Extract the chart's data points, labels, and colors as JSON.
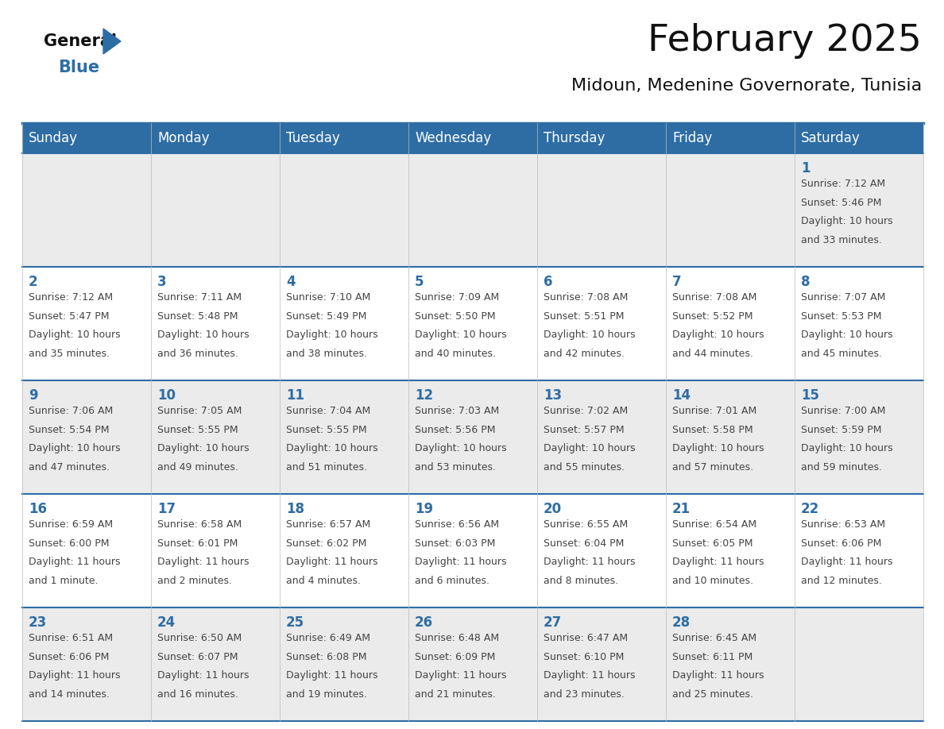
{
  "title": "February 2025",
  "subtitle": "Midoun, Medenine Governorate, Tunisia",
  "header_bg": "#2E6DA4",
  "header_text_color": "#FFFFFF",
  "day_names": [
    "Sunday",
    "Monday",
    "Tuesday",
    "Wednesday",
    "Thursday",
    "Friday",
    "Saturday"
  ],
  "row_bg_odd": "#EBEBEB",
  "row_bg_even": "#FFFFFF",
  "grid_line_color": "#2E6DA4",
  "day_number_color": "#2E6DA4",
  "info_text_color": "#444444",
  "logo_general_color": "#111111",
  "logo_blue_color": "#2E6DA4",
  "title_fontsize": 34,
  "subtitle_fontsize": 16,
  "header_fontsize": 12,
  "day_num_fontsize": 12,
  "info_fontsize": 9,
  "calendar": [
    [
      null,
      null,
      null,
      null,
      null,
      null,
      {
        "day": 1,
        "sunrise": "7:12 AM",
        "sunset": "5:46 PM",
        "daylight": "10 hours and 33 minutes."
      }
    ],
    [
      {
        "day": 2,
        "sunrise": "7:12 AM",
        "sunset": "5:47 PM",
        "daylight": "10 hours and 35 minutes."
      },
      {
        "day": 3,
        "sunrise": "7:11 AM",
        "sunset": "5:48 PM",
        "daylight": "10 hours and 36 minutes."
      },
      {
        "day": 4,
        "sunrise": "7:10 AM",
        "sunset": "5:49 PM",
        "daylight": "10 hours and 38 minutes."
      },
      {
        "day": 5,
        "sunrise": "7:09 AM",
        "sunset": "5:50 PM",
        "daylight": "10 hours and 40 minutes."
      },
      {
        "day": 6,
        "sunrise": "7:08 AM",
        "sunset": "5:51 PM",
        "daylight": "10 hours and 42 minutes."
      },
      {
        "day": 7,
        "sunrise": "7:08 AM",
        "sunset": "5:52 PM",
        "daylight": "10 hours and 44 minutes."
      },
      {
        "day": 8,
        "sunrise": "7:07 AM",
        "sunset": "5:53 PM",
        "daylight": "10 hours and 45 minutes."
      }
    ],
    [
      {
        "day": 9,
        "sunrise": "7:06 AM",
        "sunset": "5:54 PM",
        "daylight": "10 hours and 47 minutes."
      },
      {
        "day": 10,
        "sunrise": "7:05 AM",
        "sunset": "5:55 PM",
        "daylight": "10 hours and 49 minutes."
      },
      {
        "day": 11,
        "sunrise": "7:04 AM",
        "sunset": "5:55 PM",
        "daylight": "10 hours and 51 minutes."
      },
      {
        "day": 12,
        "sunrise": "7:03 AM",
        "sunset": "5:56 PM",
        "daylight": "10 hours and 53 minutes."
      },
      {
        "day": 13,
        "sunrise": "7:02 AM",
        "sunset": "5:57 PM",
        "daylight": "10 hours and 55 minutes."
      },
      {
        "day": 14,
        "sunrise": "7:01 AM",
        "sunset": "5:58 PM",
        "daylight": "10 hours and 57 minutes."
      },
      {
        "day": 15,
        "sunrise": "7:00 AM",
        "sunset": "5:59 PM",
        "daylight": "10 hours and 59 minutes."
      }
    ],
    [
      {
        "day": 16,
        "sunrise": "6:59 AM",
        "sunset": "6:00 PM",
        "daylight": "11 hours and 1 minute."
      },
      {
        "day": 17,
        "sunrise": "6:58 AM",
        "sunset": "6:01 PM",
        "daylight": "11 hours and 2 minutes."
      },
      {
        "day": 18,
        "sunrise": "6:57 AM",
        "sunset": "6:02 PM",
        "daylight": "11 hours and 4 minutes."
      },
      {
        "day": 19,
        "sunrise": "6:56 AM",
        "sunset": "6:03 PM",
        "daylight": "11 hours and 6 minutes."
      },
      {
        "day": 20,
        "sunrise": "6:55 AM",
        "sunset": "6:04 PM",
        "daylight": "11 hours and 8 minutes."
      },
      {
        "day": 21,
        "sunrise": "6:54 AM",
        "sunset": "6:05 PM",
        "daylight": "11 hours and 10 minutes."
      },
      {
        "day": 22,
        "sunrise": "6:53 AM",
        "sunset": "6:06 PM",
        "daylight": "11 hours and 12 minutes."
      }
    ],
    [
      {
        "day": 23,
        "sunrise": "6:51 AM",
        "sunset": "6:06 PM",
        "daylight": "11 hours and 14 minutes."
      },
      {
        "day": 24,
        "sunrise": "6:50 AM",
        "sunset": "6:07 PM",
        "daylight": "11 hours and 16 minutes."
      },
      {
        "day": 25,
        "sunrise": "6:49 AM",
        "sunset": "6:08 PM",
        "daylight": "11 hours and 19 minutes."
      },
      {
        "day": 26,
        "sunrise": "6:48 AM",
        "sunset": "6:09 PM",
        "daylight": "11 hours and 21 minutes."
      },
      {
        "day": 27,
        "sunrise": "6:47 AM",
        "sunset": "6:10 PM",
        "daylight": "11 hours and 23 minutes."
      },
      {
        "day": 28,
        "sunrise": "6:45 AM",
        "sunset": "6:11 PM",
        "daylight": "11 hours and 25 minutes."
      },
      null
    ]
  ]
}
